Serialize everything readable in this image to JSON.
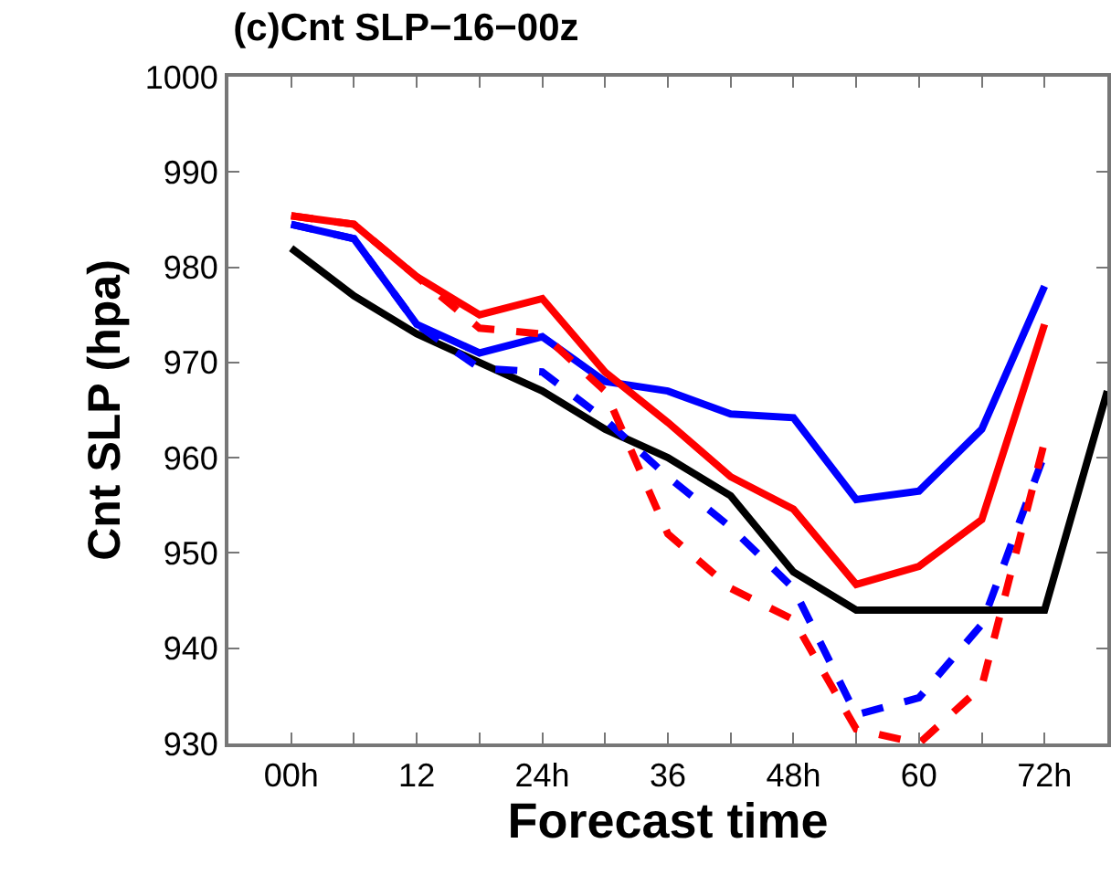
{
  "chart_data": {
    "type": "line",
    "title": "(c)Cnt SLP−16−00z",
    "xlabel": "Forecast time",
    "ylabel": "Cnt SLP (hpa)",
    "x": [
      0,
      6,
      12,
      18,
      24,
      30,
      36,
      42,
      48,
      54,
      60,
      66,
      72
    ],
    "series": [
      {
        "color": "#000000",
        "line_style": "solid",
        "x": [
          0,
          6,
          12,
          18,
          24,
          30,
          36,
          42,
          48,
          54,
          60,
          66,
          72,
          78
        ],
        "values": [
          982,
          977,
          973,
          970,
          967,
          963,
          960,
          956,
          948,
          944,
          944,
          944,
          944,
          967
        ]
      },
      {
        "color": "#0000ff",
        "line_style": "solid",
        "values": [
          984.5,
          983,
          974,
          971,
          972.7,
          968,
          967,
          964.6,
          964.2,
          955.6,
          956.5,
          963,
          978
        ]
      },
      {
        "color": "#ff0000",
        "line_style": "solid",
        "values": [
          985.4,
          984.5,
          979,
          975,
          976.7,
          969,
          963.7,
          958,
          954.6,
          946.7,
          948.6,
          953.5,
          974
        ]
      },
      {
        "color": "#0000ff",
        "line_style": "dashed",
        "values": [
          984.5,
          983,
          974,
          969.4,
          969,
          964,
          958,
          952.7,
          946.3,
          933,
          934.8,
          942.5,
          960.4
        ]
      },
      {
        "color": "#ff0000",
        "line_style": "dashed",
        "values": [
          985.4,
          984.5,
          979,
          973.6,
          973,
          967,
          952,
          946.3,
          943,
          931.5,
          930,
          936,
          961.7
        ]
      }
    ],
    "xlim": [
      -6,
      78
    ],
    "xticks": [
      {
        "value": 0,
        "label": "00h"
      },
      {
        "value": 6,
        "label": null
      },
      12,
      {
        "value": 18,
        "label": null
      },
      {
        "value": 24,
        "label": "24h"
      },
      {
        "value": 30,
        "label": null
      },
      36,
      {
        "value": 42,
        "label": null
      },
      {
        "value": 48,
        "label": "48h"
      },
      {
        "value": 54,
        "label": null
      },
      60,
      {
        "value": 66,
        "label": null
      },
      {
        "value": 72,
        "label": "72h"
      }
    ],
    "ylim": [
      930,
      1000
    ],
    "yticks": [
      930,
      940,
      950,
      960,
      970,
      980,
      990,
      1000
    ],
    "grid": false,
    "marker": "none"
  }
}
